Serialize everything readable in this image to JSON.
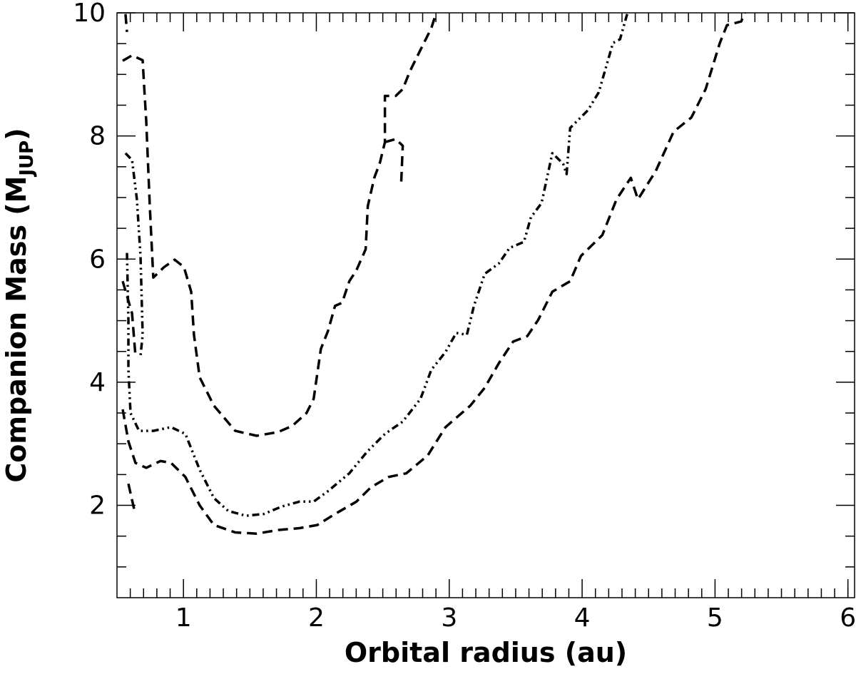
{
  "chart_data": {
    "type": "line",
    "xlabel": "Orbital radius (au)",
    "ylabel": {
      "text": "Companion Mass (M",
      "subscript": "JUP",
      "close": ")"
    },
    "xlim": [
      0.5,
      6.05
    ],
    "ylim": [
      0.5,
      10
    ],
    "xticks": [
      1,
      2,
      3,
      4,
      5,
      6
    ],
    "yticks": [
      2,
      4,
      6,
      8,
      10
    ],
    "xminorticks": [
      0.6,
      0.7,
      0.8,
      0.9,
      1.1,
      1.2,
      1.3,
      1.4,
      1.5,
      1.6,
      1.7,
      1.8,
      1.9,
      2.1,
      2.2,
      2.3,
      2.4,
      2.5,
      2.6,
      2.7,
      2.8,
      2.9,
      3.1,
      3.2,
      3.3,
      3.4,
      3.5,
      3.6,
      3.7,
      3.8,
      3.9,
      4.1,
      4.2,
      4.3,
      4.4,
      4.5,
      4.6,
      4.7,
      4.8,
      4.9,
      5.1,
      5.2,
      5.3,
      5.4,
      5.5,
      5.6,
      5.7,
      5.8,
      5.9,
      6.0
    ],
    "yminorticks": [
      1,
      1.5,
      2.5,
      3,
      3.5,
      4.5,
      5,
      5.5,
      6.5,
      7,
      7.5,
      8.5,
      9,
      9.5
    ],
    "series": [
      {
        "color": "#000000",
        "style": "dashed",
        "x": [
          0.564,
          0.575,
          null,
          0.543,
          0.613,
          0.693,
          0.704,
          0.72,
          0.747,
          0.773,
          0.854,
          0.934,
          1.004,
          1.058,
          1.079,
          1.122,
          1.229,
          1.39,
          1.551,
          1.712,
          1.819,
          1.926,
          1.98,
          2.034,
          2.087,
          2.141,
          2.194,
          2.248,
          2.302,
          2.371,
          2.387,
          2.436,
          2.479,
          2.516,
          2.516,
          2.597,
          2.65,
          2.704,
          2.784,
          2.865,
          2.902,
          null,
          2.516,
          2.597,
          2.65,
          2.639
        ],
        "values": [
          9.98,
          9.69,
          null,
          9.22,
          9.31,
          9.23,
          8.82,
          8.24,
          6.86,
          5.7,
          5.87,
          5.99,
          5.87,
          5.47,
          4.77,
          4.08,
          3.62,
          3.21,
          3.13,
          3.19,
          3.29,
          3.5,
          3.73,
          4.54,
          4.83,
          5.24,
          5.29,
          5.64,
          5.82,
          6.16,
          6.86,
          7.32,
          7.57,
          7.9,
          8.65,
          8.65,
          8.76,
          9.05,
          9.4,
          9.75,
          10.0,
          null,
          7.9,
          7.95,
          7.84,
          7.26
        ]
      },
      {
        "color": "#000000",
        "style": "dash-dot-dot",
        "x": [
          0.564,
          0.613,
          0.65,
          0.677,
          0.693,
          0.677,
          null,
          0.575,
          0.586,
          0.586,
          0.602,
          0.666,
          0.773,
          0.907,
          1.015,
          1.122,
          1.229,
          1.336,
          1.47,
          1.605,
          1.739,
          1.873,
          1.98,
          2.087,
          2.248,
          2.382,
          2.516,
          2.65,
          2.784,
          2.865,
          2.972,
          3.052,
          3.133,
          3.186,
          3.267,
          3.374,
          3.454,
          3.562,
          3.615,
          3.695,
          3.776,
          3.857,
          3.883,
          3.91,
          4.044,
          4.125,
          4.232,
          4.285,
          4.339
        ],
        "values": [
          7.72,
          7.61,
          6.97,
          6.05,
          4.77,
          4.43,
          null,
          6.1,
          5.01,
          4.2,
          3.5,
          3.21,
          3.21,
          3.27,
          3.16,
          2.58,
          2.12,
          1.91,
          1.83,
          1.86,
          1.98,
          2.06,
          2.06,
          2.23,
          2.52,
          2.87,
          3.16,
          3.36,
          3.73,
          4.2,
          4.49,
          4.8,
          4.77,
          5.24,
          5.76,
          5.93,
          6.18,
          6.28,
          6.68,
          6.91,
          7.72,
          7.55,
          7.38,
          8.13,
          8.42,
          8.71,
          9.51,
          9.57,
          9.98
        ]
      },
      {
        "color": "#000000",
        "style": "dashed",
        "x": [
          0.543,
          0.613,
          0.639,
          null,
          0.586,
          0.629,
          null,
          0.543,
          0.586,
          0.639,
          0.72,
          0.827,
          0.907,
          1.015,
          1.122,
          1.229,
          1.39,
          1.551,
          1.712,
          1.873,
          2.007,
          2.141,
          2.302,
          2.409,
          2.543,
          2.677,
          2.838,
          2.972,
          3.159,
          3.267,
          3.374,
          3.481,
          3.588,
          3.669,
          3.776,
          3.91,
          3.991,
          4.152,
          4.259,
          4.366,
          4.42,
          4.554,
          4.688,
          4.822,
          4.929,
          5.036,
          5.09,
          5.197,
          5.223
        ],
        "values": [
          5.64,
          5.12,
          4.43,
          null,
          2.35,
          1.94,
          null,
          3.56,
          3.04,
          2.69,
          2.61,
          2.72,
          2.69,
          2.46,
          2.0,
          1.68,
          1.56,
          1.54,
          1.6,
          1.63,
          1.68,
          1.86,
          2.06,
          2.29,
          2.46,
          2.52,
          2.81,
          3.27,
          3.62,
          3.91,
          4.31,
          4.66,
          4.75,
          5.01,
          5.47,
          5.64,
          6.05,
          6.39,
          6.97,
          7.32,
          6.97,
          7.43,
          8.07,
          8.3,
          8.76,
          9.51,
          9.8,
          9.86,
          10.0
        ]
      }
    ]
  }
}
